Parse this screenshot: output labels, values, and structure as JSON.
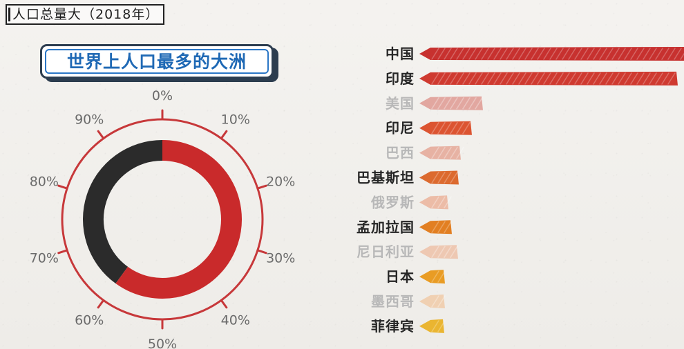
{
  "header": {
    "label": "人口总量大（2018年）"
  },
  "left_chart": {
    "title": "世界上人口最多的大洲"
  },
  "chart_data": [
    {
      "type": "donut",
      "title": "世界上人口最多的大洲",
      "ticks": [
        "0%",
        "10%",
        "20%",
        "30%",
        "40%",
        "50%",
        "60%",
        "70%",
        "80%",
        "90%"
      ],
      "value_percent": 60,
      "colors": {
        "filled": "#c92a2b",
        "remainder": "#2b2b2b",
        "outer_ring": "#c7383a"
      }
    },
    {
      "type": "bar",
      "orientation": "horizontal",
      "categories": [
        "中国",
        "印度",
        "美国",
        "印尼",
        "巴西",
        "巴基斯坦",
        "俄罗斯",
        "孟加拉国",
        "尼日利亚",
        "日本",
        "墨西哥",
        "菲律宾"
      ],
      "values": [
        1390,
        1350,
        327,
        268,
        209,
        200,
        146,
        165,
        196,
        127,
        126,
        107
      ],
      "xlim": [
        0,
        1390
      ],
      "highlighted": [
        true,
        true,
        false,
        true,
        false,
        true,
        false,
        true,
        false,
        true,
        false,
        true
      ],
      "colors": [
        "#c7312f",
        "#cf3a30",
        "#e2a7a0",
        "#dc5431",
        "#e7b2a3",
        "#dc6a2f",
        "#ecbca7",
        "#e27f22",
        "#eec8b2",
        "#e99c24",
        "#f0d0b2",
        "#eab531"
      ]
    }
  ]
}
